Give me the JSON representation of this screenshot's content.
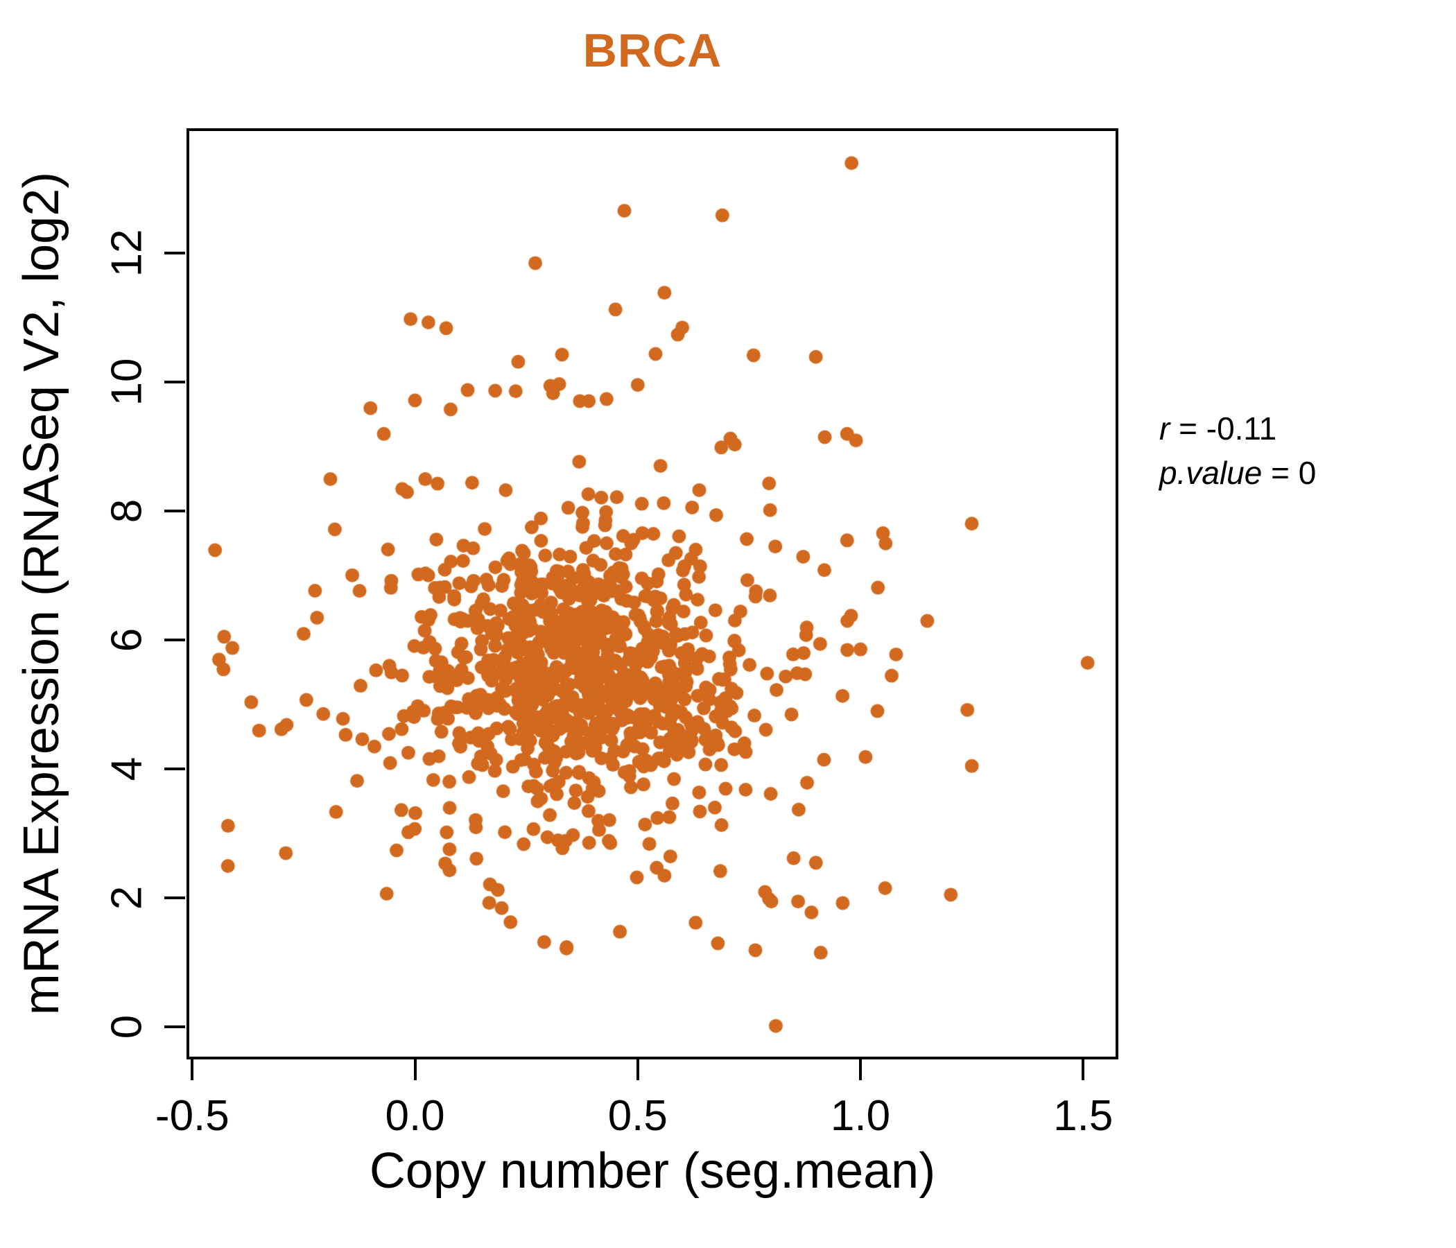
{
  "chart_data": {
    "type": "scatter",
    "title": "BRCA",
    "xlabel": "Copy number (seg.mean)",
    "ylabel": "mRNA Expression (RNASeq V2, log2)",
    "xlim": [
      -0.513,
      1.579
    ],
    "ylim": [
      -0.5,
      13.94
    ],
    "xticks": [
      -0.5,
      0.0,
      0.5,
      1.0,
      1.5
    ],
    "xtick_labels": [
      "-0.5",
      "0.0",
      "0.5",
      "1.0",
      "1.5"
    ],
    "yticks": [
      0,
      2,
      4,
      6,
      8,
      10,
      12
    ],
    "ytick_labels": [
      "0",
      "2",
      "4",
      "6",
      "8",
      "10",
      "12"
    ],
    "grid": false,
    "legend": "none",
    "point_color": "#D2691E",
    "title_color": "#D2691E",
    "axis_color": "#000000",
    "point_radius_px": 10,
    "n_points": 1012,
    "annotation": {
      "r": -0.11,
      "p_value": 0,
      "r_var": "r",
      "r_rest": " = -0.11",
      "p_var": "p.value",
      "p_rest": " = 0"
    },
    "distribution": {
      "comment": "dense elliptical cloud; parameters estimated from pixels",
      "seed": 11,
      "n_generated": 960,
      "slope": -0.55,
      "x_center": 0.36,
      "components": [
        {
          "w": 0.6,
          "mx": 0.37,
          "sx": 0.165,
          "my": 5.62,
          "sy": 0.88
        },
        {
          "w": 0.29,
          "mx": 0.34,
          "sx": 0.27,
          "my": 5.35,
          "sy": 1.55
        },
        {
          "w": 0.11,
          "mx": 0.43,
          "sx": 0.38,
          "my": 6.05,
          "sy": 2.35
        }
      ],
      "x_range": [
        -0.455,
        1.28
      ],
      "y_range": [
        1.0,
        10.4
      ]
    },
    "notable_points": [
      [
        0.98,
        13.4
      ],
      [
        0.47,
        12.66
      ],
      [
        0.69,
        12.59
      ],
      [
        0.27,
        11.85
      ],
      [
        0.56,
        11.39
      ],
      [
        0.45,
        11.13
      ],
      [
        -0.01,
        10.98
      ],
      [
        0.03,
        10.93
      ],
      [
        0.07,
        10.84
      ],
      [
        0.54,
        10.44
      ],
      [
        0.33,
        10.43
      ],
      [
        0.59,
        10.74
      ],
      [
        0.6,
        10.85
      ],
      [
        0.76,
        10.42
      ],
      [
        0.5,
        9.96
      ],
      [
        0.18,
        9.87
      ],
      [
        0.31,
        9.83
      ],
      [
        0.37,
        9.71
      ],
      [
        0.39,
        9.71
      ],
      [
        0.43,
        9.74
      ],
      [
        0.0,
        9.72
      ],
      [
        0.08,
        9.58
      ],
      [
        -0.1,
        9.6
      ],
      [
        -0.07,
        9.2
      ],
      [
        0.97,
        9.2
      ],
      [
        0.99,
        9.1
      ],
      [
        0.92,
        9.15
      ],
      [
        0.97,
        7.55
      ],
      [
        1.15,
        6.3
      ],
      [
        1.51,
        5.65
      ],
      [
        1.24,
        4.92
      ],
      [
        1.25,
        4.05
      ],
      [
        1.08,
        5.78
      ],
      [
        1.07,
        5.45
      ],
      [
        -0.44,
        5.7
      ],
      [
        -0.41,
        5.88
      ],
      [
        -0.43,
        5.55
      ],
      [
        -0.42,
        2.5
      ],
      [
        -0.35,
        4.6
      ],
      [
        -0.3,
        4.62
      ],
      [
        -0.29,
        2.7
      ],
      [
        -0.25,
        6.1
      ],
      [
        -0.22,
        6.35
      ],
      [
        -0.19,
        8.5
      ],
      [
        -0.18,
        7.72
      ],
      [
        -0.13,
        3.82
      ],
      [
        0.81,
        0.02
      ],
      [
        0.89,
        1.78
      ],
      [
        0.8,
        1.95
      ],
      [
        0.46,
        1.48
      ],
      [
        0.34,
        1.22
      ],
      [
        0.29,
        1.32
      ],
      [
        0.56,
        2.35
      ],
      [
        0.9,
        2.55
      ],
      [
        0.85,
        2.62
      ],
      [
        0.86,
        1.95
      ],
      [
        0.63,
        1.62
      ],
      [
        0.68,
        1.3
      ]
    ]
  }
}
